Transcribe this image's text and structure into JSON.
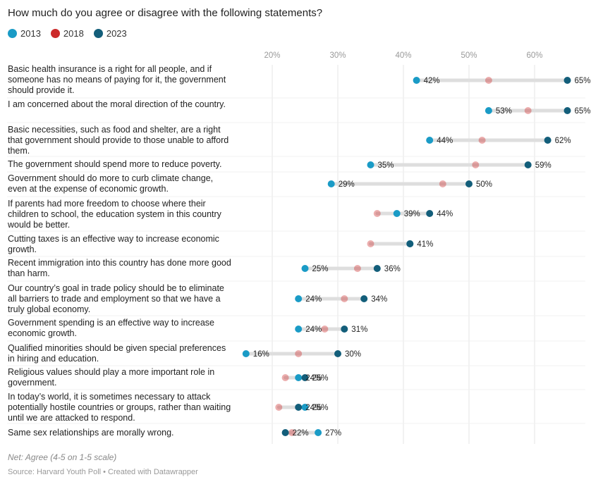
{
  "chart_data": {
    "type": "dot-range",
    "title": "How much do you agree or disagree with the following statements?",
    "legend": [
      {
        "name": "2013",
        "color": "#1a9bc6"
      },
      {
        "name": "2018",
        "color": "#cc2a2a"
      },
      {
        "name": "2023",
        "color": "#135e7a"
      }
    ],
    "x_ticks": [
      {
        "value": 20,
        "label": "20%"
      },
      {
        "value": 30,
        "label": "30%"
      },
      {
        "value": 40,
        "label": "40%"
      },
      {
        "value": 50,
        "label": "50%"
      },
      {
        "value": 60,
        "label": "60%"
      }
    ],
    "rows": [
      {
        "label": "Basic health insurance is a right for all people, and if someone has no means of paying for it, the government should provide it.",
        "v2013": 42,
        "v2018": 53,
        "v2023": 65,
        "l2013": "42%",
        "l2023": "65%"
      },
      {
        "label": "I am concerned about the moral direction of the country.",
        "v2013": 53,
        "v2018": 59,
        "v2023": 65,
        "l2013": "53%",
        "l2023": "65%"
      },
      {
        "label": "Basic necessities, such as food and shelter, are a right that government should provide to those unable to afford them.",
        "v2013": 44,
        "v2018": 52,
        "v2023": 62,
        "l2013": "44%",
        "l2023": "62%"
      },
      {
        "label": "The government should spend more to reduce poverty.",
        "v2013": 35,
        "v2018": 51,
        "v2023": 59,
        "l2013": "35%",
        "l2023": "59%"
      },
      {
        "label": "Government should do more to curb climate change, even at the expense of economic growth.",
        "v2013": 29,
        "v2018": 46,
        "v2023": 50,
        "l2013": "29%",
        "l2023": "50%"
      },
      {
        "label": "If parents had more freedom to choose where their children to school, the education system in this country would be better.",
        "v2013": 39,
        "v2018": 36,
        "v2023": 44,
        "l2013": "39%",
        "l2023": "44%"
      },
      {
        "label": "Cutting taxes is an effective way to increase economic growth.",
        "v2013": 41,
        "v2018": 35,
        "v2023": 41,
        "l2013": "",
        "l2023": "41%"
      },
      {
        "label": "Recent immigration into this country has done more good than harm.",
        "v2013": 25,
        "v2018": 33,
        "v2023": 36,
        "l2013": "25%",
        "l2023": "36%"
      },
      {
        "label": "Our country’s goal in trade policy should be to eliminate all barriers to trade and employment so that we have a truly global economy.",
        "v2013": 24,
        "v2018": 31,
        "v2023": 34,
        "l2013": "24%",
        "l2023": "34%"
      },
      {
        "label": "Government spending is an effective way to increase economic growth.",
        "v2013": 24,
        "v2018": 28,
        "v2023": 31,
        "l2013": "24%",
        "l2023": "31%"
      },
      {
        "label": "Qualified minorities should be given special preferences in hiring and education.",
        "v2013": 16,
        "v2018": 24,
        "v2023": 30,
        "l2013": "16%",
        "l2023": "30%"
      },
      {
        "label": "Religious values should play a more important role in government.",
        "v2013": 24,
        "v2018": 22,
        "v2023": 25,
        "l2013": "24%",
        "l2023": "25%"
      },
      {
        "label": "In today’s world, it is sometimes necessary to attack potentially hostile countries or groups, rather than waiting until we are attacked to respond.",
        "v2013": 25,
        "v2018": 21,
        "v2023": 24,
        "l2013": "25%",
        "l2023": "24%"
      },
      {
        "label": "Same sex relationships are morally wrong.",
        "v2013": 27,
        "v2018": 23,
        "v2023": 22,
        "l2013": "27%",
        "l2023": "22%"
      }
    ],
    "note": "Net: Agree (4-5 on 1-5 scale)",
    "source": "Source: Harvard Youth Poll • Created with Datawrapper"
  }
}
